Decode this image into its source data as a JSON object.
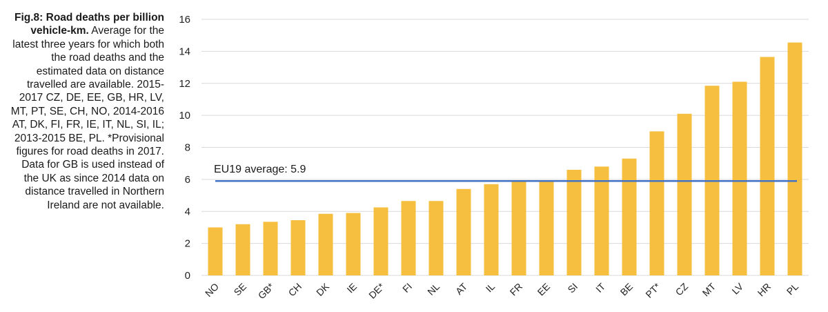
{
  "caption": {
    "title": "Fig.8: Road deaths per billion vehicle-km.",
    "text": "Average for the latest three years for which both the road deaths and the estimated data on distance travelled are available. 2015-2017 CZ, DE, EE, GB, HR, LV, MT, PT, SE, CH, NO, 2014-2016 AT, DK, FI, FR, IE, IT, NL, SI, IL; 2013-2015 BE, PL. *Provisional figures for road deaths in 2017. Data for GB is used instead of the UK as since 2014 data on distance travelled in Northern Ireland are not available."
  },
  "colors": {
    "bar": "#F6BF3F",
    "average_line": "#4472C4",
    "grid": "#D9D9D9"
  },
  "chart_data": {
    "type": "bar",
    "title": "Fig.8: Road deaths per billion vehicle-km.",
    "categories": [
      "NO",
      "SE",
      "GB*",
      "CH",
      "DK",
      "IE",
      "DE*",
      "FI",
      "NL",
      "AT",
      "IL",
      "FR",
      "EE",
      "SI",
      "IT",
      "BE",
      "PT*",
      "CZ",
      "MT",
      "LV",
      "HR",
      "PL"
    ],
    "values": [
      3.0,
      3.2,
      3.35,
      3.45,
      3.85,
      3.9,
      4.25,
      4.65,
      4.65,
      5.4,
      5.7,
      5.9,
      5.95,
      6.6,
      6.8,
      7.3,
      9.0,
      10.1,
      11.85,
      12.1,
      13.65,
      14.55
    ],
    "ylim": [
      0,
      16
    ],
    "yticks": [
      0,
      2,
      4,
      6,
      8,
      10,
      12,
      14,
      16
    ],
    "grid": true,
    "reference_line": {
      "value": 5.9,
      "label": "EU19 average: 5.9"
    }
  }
}
